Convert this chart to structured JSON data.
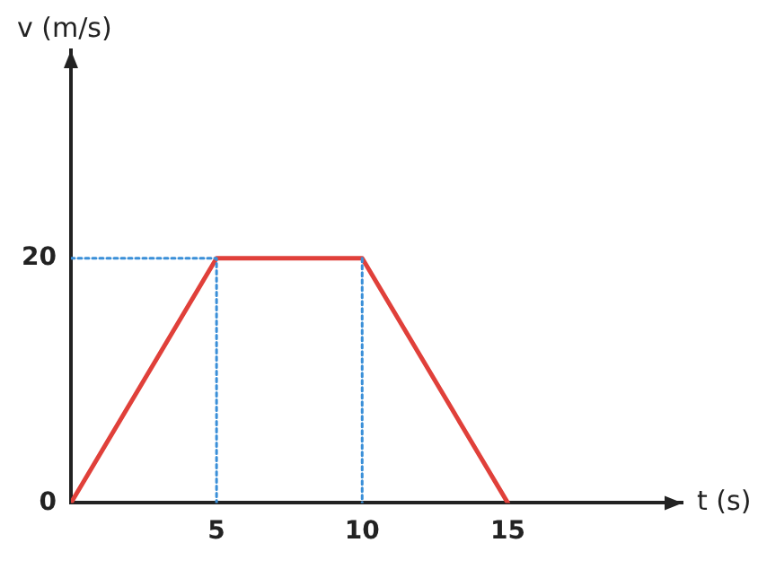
{
  "chart_data": {
    "type": "line",
    "xlabel": "t (s)",
    "ylabel": "v (m/s)",
    "x": [
      0,
      5,
      10,
      15
    ],
    "series": [
      {
        "color": "#e0403a",
        "values": [
          0,
          20,
          20,
          0
        ]
      },
      {
        "color": "#3a8fd8",
        "line_style": "dotted",
        "x": [
          0,
          5,
          5
        ],
        "values": [
          20,
          20,
          0
        ]
      },
      {
        "color": "#3a8fd8",
        "line_style": "dotted",
        "x": [
          10,
          10
        ],
        "values": [
          20,
          0
        ]
      }
    ],
    "xlim": [
      0,
      21
    ],
    "xticks": [
      5,
      10,
      15
    ],
    "ylim": [
      0,
      37
    ],
    "yticks": [
      0,
      20
    ],
    "marker": "none",
    "legend": false,
    "grid": false
  }
}
